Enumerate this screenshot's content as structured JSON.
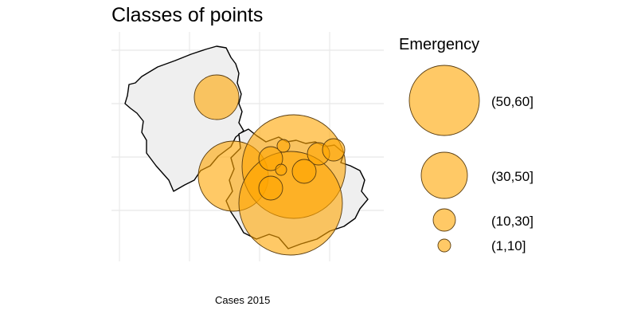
{
  "title": "Classes of points",
  "caption": "Cases 2015",
  "colors": {
    "land": "#efefef",
    "border": "#000000",
    "bubble": "#FFA500",
    "bubble_stroke": "#5a3d10",
    "grid": "#e6e6e6"
  },
  "legend": {
    "title": "Emergency",
    "classes": [
      {
        "label": "(50,60]"
      },
      {
        "label": "(30,50]"
      },
      {
        "label": "(10,30]"
      },
      {
        "label": "(1,10]"
      }
    ]
  },
  "icons": [
    "map-regions",
    "proportional-bubbles"
  ]
}
